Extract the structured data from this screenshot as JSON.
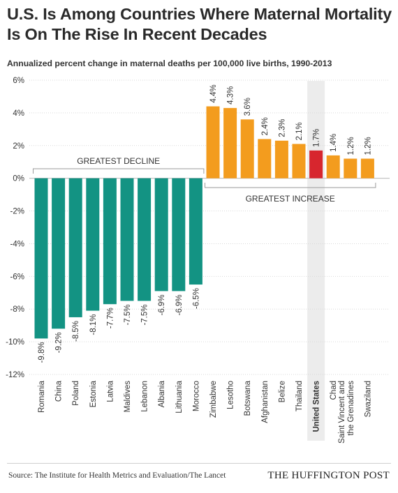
{
  "title": "U.S. Is Among Countries Where Maternal Mortality Is On The Rise In Recent Decades",
  "subtitle": "Annualized percent change in maternal deaths per 100,000 live births, 1990-2013",
  "source": "Source: The Institute for Health Metrics and Evaluation/The Lancet",
  "brand": "THE HUFFINGTON POST",
  "colors": {
    "decline": "#139383",
    "increase": "#F39C1E",
    "highlight": "#D7262E",
    "highlight_band": "#ECECEC",
    "grid": "#D9D9D9"
  },
  "chart_data": {
    "type": "bar",
    "categories": [
      "Romania",
      "China",
      "Poland",
      "Estonia",
      "Latvia",
      "Maldives",
      "Lebanon",
      "Albania",
      "Lithuania",
      "Morocco",
      "Zimbabwe",
      "Lesotho",
      "Botswana",
      "Afghanistan",
      "Belize",
      "Thailand",
      "United States",
      "Chad",
      "Saint Vincent and the Grenadines",
      "Swaziland"
    ],
    "category_lines": [
      [
        "Romania"
      ],
      [
        "China"
      ],
      [
        "Poland"
      ],
      [
        "Estonia"
      ],
      [
        "Latvia"
      ],
      [
        "Maldives"
      ],
      [
        "Lebanon"
      ],
      [
        "Albania"
      ],
      [
        "Lithuania"
      ],
      [
        "Morocco"
      ],
      [
        "Zimbabwe"
      ],
      [
        "Lesotho"
      ],
      [
        "Botswana"
      ],
      [
        "Afghanistan"
      ],
      [
        "Belize"
      ],
      [
        "Thailand"
      ],
      [
        "United States"
      ],
      [
        "Chad"
      ],
      [
        "Saint Vincent and",
        "the Grenadines"
      ],
      [
        "Swaziland"
      ]
    ],
    "values": [
      -9.8,
      -9.2,
      -8.5,
      -8.1,
      -7.7,
      -7.5,
      -7.5,
      -6.9,
      -6.9,
      -6.5,
      4.4,
      4.3,
      3.6,
      2.4,
      2.3,
      2.1,
      1.7,
      1.4,
      1.2,
      1.2
    ],
    "value_labels": [
      "-9.8%",
      "-9.2%",
      "-8.5%",
      "-8.1%",
      "-7.7%",
      "-7.5%",
      "-7.5%",
      "-6.9%",
      "-6.9%",
      "-6.5%",
      "4.4%",
      "4.3%",
      "3.6%",
      "2.4%",
      "2.3%",
      "2.1%",
      "1.7%",
      "1.4%",
      "1.2%",
      "1.2%"
    ],
    "highlight": "United States",
    "ylim": [
      -12,
      6
    ],
    "yticks": [
      6,
      4,
      2,
      0,
      -2,
      -4,
      -6,
      -8,
      -10,
      -12
    ],
    "ytick_labels": [
      "6%",
      "4%",
      "2%",
      "0%",
      "-2%",
      "-4%",
      "-6%",
      "-8%",
      "-10%",
      "-12%"
    ],
    "grid": true,
    "groups": [
      {
        "label": "GREATEST DECLINE",
        "first": 0,
        "last": 9,
        "placement": "above"
      },
      {
        "label": "GREATEST INCREASE",
        "first": 10,
        "last": 19,
        "placement": "below"
      }
    ]
  }
}
